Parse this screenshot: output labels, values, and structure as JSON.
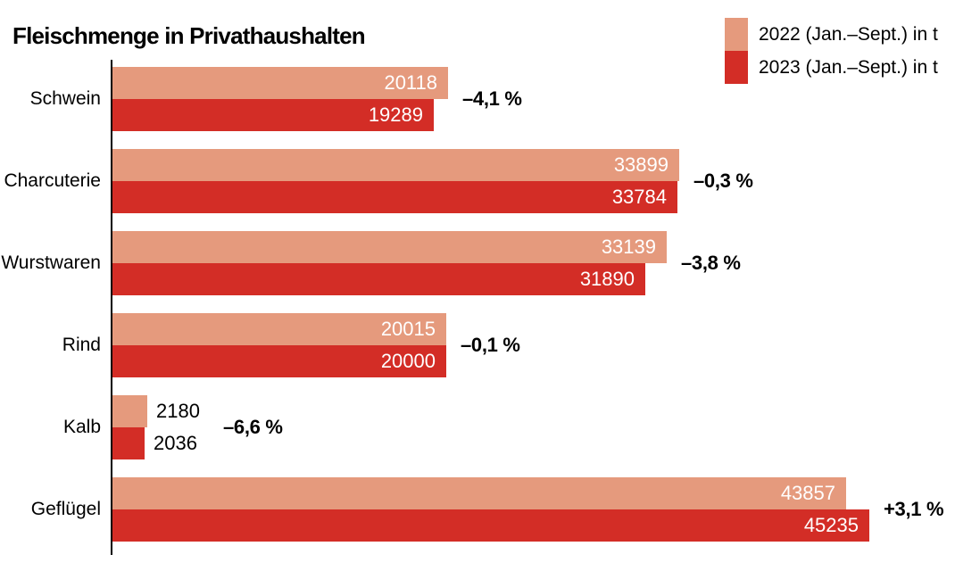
{
  "title": "Fleischmenge in Privathaushalten",
  "legend": {
    "items": [
      {
        "label": "2022 (Jan.–Sept.) in t",
        "color": "#E59A7D"
      },
      {
        "label": "2023 (Jan.–Sept.) in t",
        "color": "#D32D26"
      }
    ]
  },
  "chart_data": {
    "type": "bar",
    "orientation": "horizontal",
    "title": "Fleischmenge in Privathaushalten",
    "unit": "t",
    "categories": [
      "Schwein",
      "Charcuterie",
      "Wurstwaren",
      "Rind",
      "Kalb",
      "Geflügel"
    ],
    "series": [
      {
        "name": "2022 (Jan.–Sept.)",
        "color": "#E59A7D",
        "values": [
          20118,
          33899,
          33139,
          20015,
          2180,
          43857
        ]
      },
      {
        "name": "2023 (Jan.–Sept.)",
        "color": "#D32D26",
        "values": [
          19289,
          33784,
          31890,
          20000,
          2036,
          45235
        ]
      }
    ],
    "change_labels": [
      "–4,1 %",
      "–0,3 %",
      "–3,8 %",
      "–0,1 %",
      "–6,6 %",
      "+3,1 %"
    ],
    "xlim": [
      0,
      45235
    ],
    "grid": false,
    "legend_position": "top-right",
    "value_label_color_inside": "#FFFFFF",
    "value_label_color_outside": "#000000",
    "axis_color": "#000000"
  }
}
